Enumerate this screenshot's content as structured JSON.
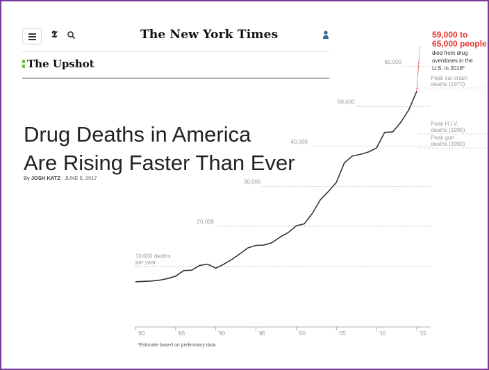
{
  "header": {
    "masthead": "The New York Times",
    "section": "The Upshot"
  },
  "icons": {
    "menu": "hamburger-menu-icon",
    "logo": "nyt-t-logo-icon",
    "search": "search-icon",
    "account": "user-icon"
  },
  "article": {
    "headline_line1": "Drug Deaths in America",
    "headline_line2": "Are Rising Faster Than Ever",
    "byline_prefix": "By",
    "author": "JOSH KATZ",
    "date": "JUNE 5, 2017"
  },
  "colors": {
    "accent_red": "#e8302a",
    "line": "#333333",
    "upshot_green": "#6fc03c",
    "frame": "#7a3a9a"
  },
  "chart_data": {
    "type": "line",
    "x": [
      1980,
      1981,
      1982,
      1983,
      1984,
      1985,
      1986,
      1987,
      1988,
      1989,
      1990,
      1991,
      1992,
      1993,
      1994,
      1995,
      1996,
      1997,
      1998,
      1999,
      2000,
      2001,
      2002,
      2003,
      2004,
      2005,
      2006,
      2007,
      2008,
      2009,
      2010,
      2011,
      2012,
      2013,
      2014,
      2015
    ],
    "values": [
      6100,
      6200,
      6300,
      6500,
      6900,
      7500,
      8900,
      9000,
      10200,
      10500,
      9500,
      10500,
      11700,
      13100,
      14600,
      15200,
      15300,
      15900,
      17300,
      18400,
      20100,
      20600,
      23200,
      26600,
      28700,
      31000,
      35900,
      37600,
      38000,
      38600,
      39600,
      43500,
      43600,
      46000,
      49100,
      53800
    ],
    "estimate_2016_range": [
      59000,
      65000
    ],
    "ylim": [
      0,
      65000
    ],
    "y_ticks": [
      {
        "value": 10000,
        "label": "10,000 deaths",
        "label2": "per year"
      },
      {
        "value": 20000,
        "label": "20,000"
      },
      {
        "value": 30000,
        "label": "30,000"
      },
      {
        "value": 40000,
        "label": "40,000"
      },
      {
        "value": 50000,
        "label": "50,000"
      },
      {
        "value": 60000,
        "label": "60,000"
      }
    ],
    "x_ticks": [
      "'80",
      "'85",
      "'90",
      "'95",
      "'00",
      "'05",
      "'10",
      "'15"
    ],
    "x_tick_years": [
      1980,
      1985,
      1990,
      1995,
      2000,
      2005,
      2010,
      2015
    ],
    "reference_lines": [
      {
        "value": 54589,
        "label1": "Peak car crash",
        "label2": "deaths (1972)"
      },
      {
        "value": 43115,
        "label1": "Peak H.I.V.",
        "label2": "deaths (1995)"
      },
      {
        "value": 39595,
        "label1": "Peak gun",
        "label2": "deaths (1993)"
      }
    ],
    "annotation": {
      "big1": "59,000 to",
      "big2": "65,000 people",
      "small1": "died from drug",
      "small2": "overdoses in the",
      "small3": "U.S. in 2016*"
    },
    "footnote": "*Estimate based on preliminary data"
  }
}
